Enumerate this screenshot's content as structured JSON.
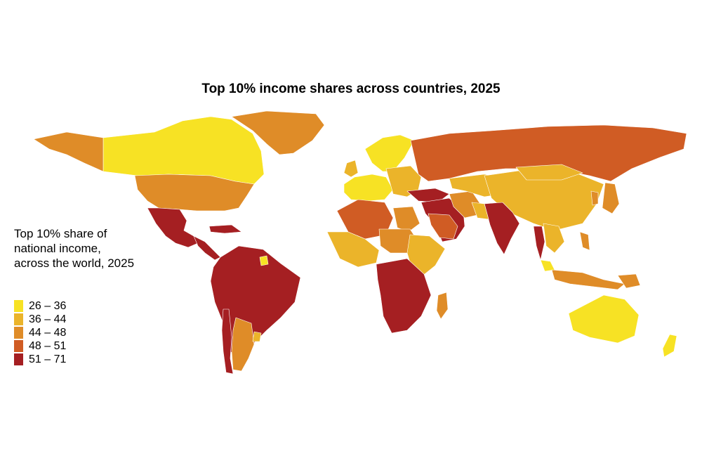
{
  "title": "Top 10% income shares across countries, 2025",
  "legend": {
    "title_lines": [
      "Top 10% share of",
      "national income,",
      "across the world, 2025"
    ],
    "items": [
      {
        "label": "26 – 36",
        "color": "#f7e224"
      },
      {
        "label": "36 – 44",
        "color": "#ebb42a"
      },
      {
        "label": "44 – 48",
        "color": "#df8c28"
      },
      {
        "label": "48 – 51",
        "color": "#d05c24"
      },
      {
        "label": "51 – 71",
        "color": "#a51f22"
      }
    ]
  },
  "regions": [
    {
      "name": "canada",
      "bin": "26 – 36"
    },
    {
      "name": "alaska",
      "bin": "44 – 48"
    },
    {
      "name": "greenland",
      "bin": "44 – 48"
    },
    {
      "name": "united-states",
      "bin": "44 – 48"
    },
    {
      "name": "mexico",
      "bin": "51 – 71"
    },
    {
      "name": "central-america",
      "bin": "51 – 71"
    },
    {
      "name": "caribbean",
      "bin": "51 – 71"
    },
    {
      "name": "south-america-north",
      "bin": "51 – 71"
    },
    {
      "name": "argentina",
      "bin": "44 – 48"
    },
    {
      "name": "uruguay",
      "bin": "36 – 44"
    },
    {
      "name": "chile",
      "bin": "51 – 71"
    },
    {
      "name": "guyana",
      "bin": "26 – 36"
    },
    {
      "name": "scandinavia",
      "bin": "26 – 36"
    },
    {
      "name": "uk-ireland",
      "bin": "36 – 44"
    },
    {
      "name": "western-europe",
      "bin": "26 – 36"
    },
    {
      "name": "eastern-europe",
      "bin": "36 – 44"
    },
    {
      "name": "russia",
      "bin": "48 – 51"
    },
    {
      "name": "turkey",
      "bin": "51 – 71"
    },
    {
      "name": "middle-east",
      "bin": "51 – 71"
    },
    {
      "name": "saudi-arabia",
      "bin": "48 – 51"
    },
    {
      "name": "iran",
      "bin": "44 – 48"
    },
    {
      "name": "central-asia",
      "bin": "36 – 44"
    },
    {
      "name": "china",
      "bin": "36 – 44"
    },
    {
      "name": "mongolia",
      "bin": "36 – 44"
    },
    {
      "name": "india",
      "bin": "51 – 71"
    },
    {
      "name": "south-asia",
      "bin": "36 – 44"
    },
    {
      "name": "thailand",
      "bin": "51 – 71"
    },
    {
      "name": "indochina",
      "bin": "36 – 44"
    },
    {
      "name": "malaysia",
      "bin": "26 – 36"
    },
    {
      "name": "indonesia",
      "bin": "44 – 48"
    },
    {
      "name": "philippines",
      "bin": "44 – 48"
    },
    {
      "name": "japan",
      "bin": "44 – 48"
    },
    {
      "name": "korea",
      "bin": "44 – 48"
    },
    {
      "name": "north-africa",
      "bin": "48 – 51"
    },
    {
      "name": "egypt",
      "bin": "44 – 48"
    },
    {
      "name": "west-africa",
      "bin": "36 – 44"
    },
    {
      "name": "sahel",
      "bin": "44 – 48"
    },
    {
      "name": "east-africa",
      "bin": "36 – 44"
    },
    {
      "name": "southern-central-africa",
      "bin": "51 – 71"
    },
    {
      "name": "madagascar",
      "bin": "44 – 48"
    },
    {
      "name": "australia",
      "bin": "26 – 36"
    },
    {
      "name": "new-zealand",
      "bin": "26 – 36"
    },
    {
      "name": "papua-new-guinea",
      "bin": "44 – 48"
    }
  ]
}
